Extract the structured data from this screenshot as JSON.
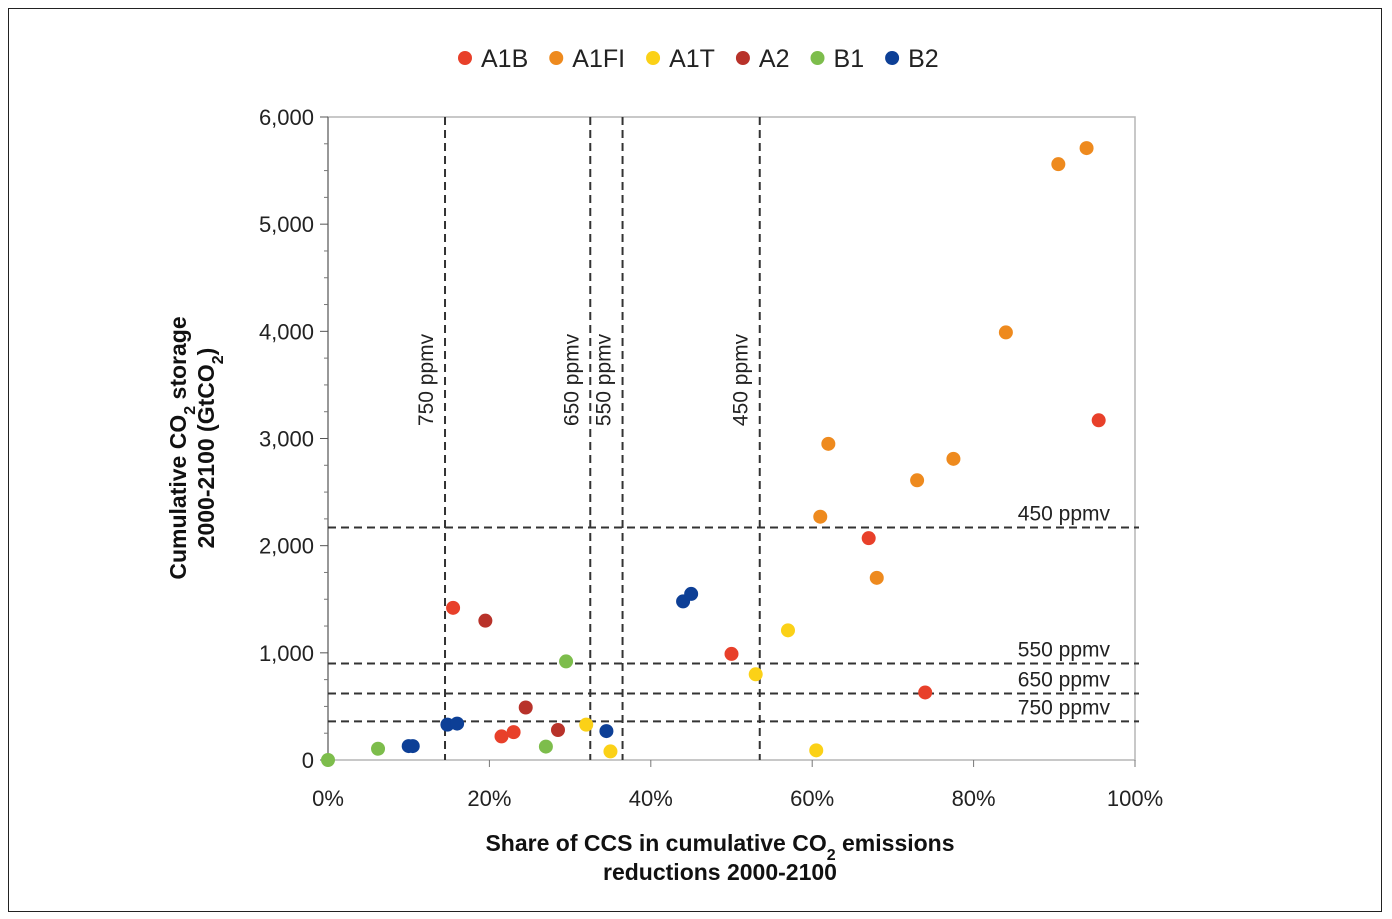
{
  "chart_data": {
    "type": "scatter",
    "xlabel_line1": "Share of CCS in cumulative CO",
    "xlabel_line1_sub": "2",
    "xlabel_line1_tail": " emissions",
    "xlabel_line2": "reductions 2000-2100",
    "ylabel_line1_pre": "Cumulative CO",
    "ylabel_line1_sub": "2",
    "ylabel_line1_tail": " storage",
    "ylabel_line2_pre": "2000-2100 (GtCO",
    "ylabel_line2_sub": "2",
    "ylabel_line2_tail": ")",
    "xlim": [
      0,
      100
    ],
    "ylim": [
      0,
      6000
    ],
    "x_ticks": [
      "0%",
      "20%",
      "40%",
      "60%",
      "80%",
      "100%"
    ],
    "x_tick_values": [
      0,
      20,
      40,
      60,
      80,
      100
    ],
    "y_ticks": [
      "0",
      "1,000",
      "2,000",
      "3,000",
      "4,000",
      "5,000",
      "6,000"
    ],
    "y_tick_values": [
      0,
      1000,
      2000,
      3000,
      4000,
      5000,
      6000
    ],
    "grid": false,
    "legend_position": "top",
    "series": [
      {
        "name": "A1B",
        "color": "#e8402a",
        "points": [
          [
            15.5,
            1420
          ],
          [
            21.5,
            220
          ],
          [
            23,
            260
          ],
          [
            50,
            990
          ],
          [
            67,
            2070
          ],
          [
            74,
            630
          ],
          [
            95.5,
            3170
          ]
        ]
      },
      {
        "name": "A1FI",
        "color": "#ee8a1e",
        "points": [
          [
            61,
            2270
          ],
          [
            62,
            2950
          ],
          [
            68,
            1700
          ],
          [
            73,
            2610
          ],
          [
            77.5,
            2810
          ],
          [
            84,
            3990
          ],
          [
            90.5,
            5560
          ],
          [
            94,
            5710
          ]
        ]
      },
      {
        "name": "A1T",
        "color": "#fbd117",
        "points": [
          [
            32,
            330
          ],
          [
            35,
            80
          ],
          [
            53,
            800
          ],
          [
            57,
            1210
          ],
          [
            60.5,
            90
          ]
        ]
      },
      {
        "name": "A2",
        "color": "#b8322a",
        "points": [
          [
            19.5,
            1300
          ],
          [
            24.5,
            490
          ],
          [
            28.5,
            280
          ]
        ]
      },
      {
        "name": "B1",
        "color": "#7dbd4c",
        "points": [
          [
            0,
            0
          ],
          [
            6.2,
            105
          ],
          [
            27,
            125
          ],
          [
            29.5,
            920
          ]
        ]
      },
      {
        "name": "B2",
        "color": "#0d3f96",
        "points": [
          [
            10,
            130
          ],
          [
            10.5,
            130
          ],
          [
            14.8,
            330
          ],
          [
            16,
            340
          ],
          [
            34.5,
            270
          ],
          [
            44,
            1480
          ],
          [
            45,
            1550
          ]
        ]
      }
    ],
    "vertical_refs": [
      {
        "label": "750 ppmv",
        "x": 14.5
      },
      {
        "label": "650 ppmv",
        "x": 32.5
      },
      {
        "label": "550 ppmv",
        "x": 36.5
      },
      {
        "label": "450 ppmv",
        "x": 53.5
      }
    ],
    "horizontal_refs": [
      {
        "label": "450 ppmv",
        "y": 2170
      },
      {
        "label": "550 ppmv",
        "y": 900
      },
      {
        "label": "650 ppmv",
        "y": 620
      },
      {
        "label": "750 ppmv",
        "y": 360
      }
    ]
  }
}
